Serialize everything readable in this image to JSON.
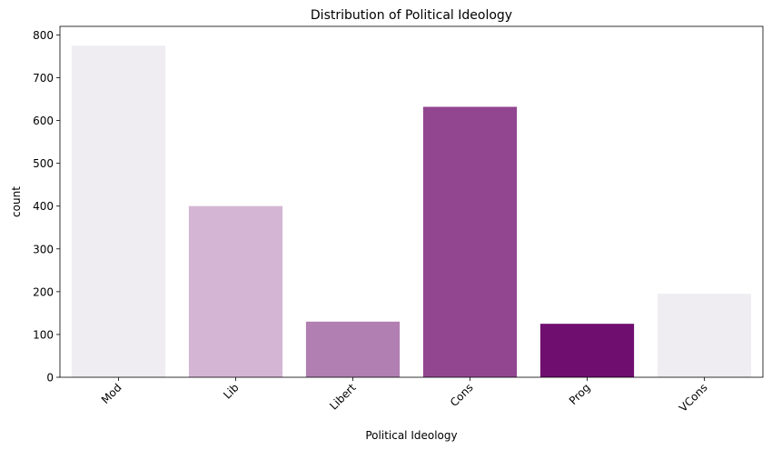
{
  "chart_data": {
    "type": "bar",
    "title": "Distribution of Political Ideology",
    "xlabel": "Political Ideology",
    "ylabel": "count",
    "categories": [
      "Mod",
      "Lib",
      "Libert",
      "Cons",
      "Prog",
      "VCons"
    ],
    "values": [
      775,
      400,
      130,
      632,
      125,
      195
    ],
    "colors": [
      "#f0edf2",
      "#d4b6d4",
      "#b17fb1",
      "#91468f",
      "#700e70",
      "#f0edf2"
    ],
    "ylim": [
      0,
      820
    ],
    "yticks": [
      0,
      100,
      200,
      300,
      400,
      500,
      600,
      700,
      800
    ],
    "grid": false,
    "legend": "none",
    "xtick_rotation": 45
  }
}
